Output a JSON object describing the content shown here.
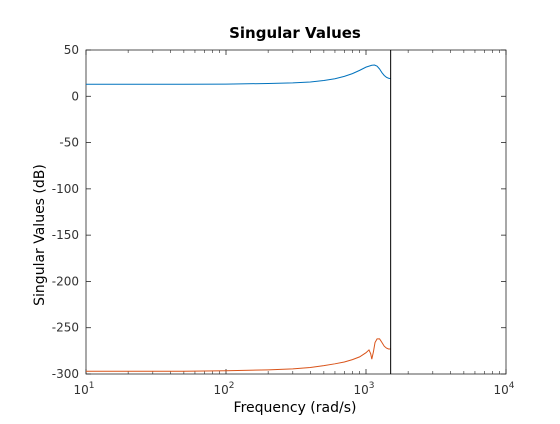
{
  "chart_data": {
    "type": "line",
    "title": "Singular Values",
    "xlabel": "Frequency (rad/s)",
    "ylabel": "Singular Values (dB)",
    "x_scale": "log",
    "xlim": [
      10,
      10000
    ],
    "ylim": [
      -300,
      50
    ],
    "grid": false,
    "legend": "none",
    "x_ticks": [
      {
        "value": 10,
        "base": "10",
        "exp": "1"
      },
      {
        "value": 100,
        "base": "10",
        "exp": "2"
      },
      {
        "value": 1000,
        "base": "10",
        "exp": "3"
      },
      {
        "value": 10000,
        "base": "10",
        "exp": "4"
      }
    ],
    "y_ticks": [
      50,
      0,
      -50,
      -100,
      -150,
      -200,
      -250,
      -300
    ],
    "vertical_line_x": 1500,
    "colors": {
      "series_1": "#0072bd",
      "series_2": "#d95319",
      "vertical_line": "#000000",
      "axes": "#262626"
    },
    "series": [
      {
        "x": [
          10,
          20,
          50,
          100,
          200,
          300,
          400,
          500,
          600,
          700,
          800,
          900,
          1000,
          1100,
          1150,
          1200,
          1250,
          1300,
          1350,
          1400,
          1450,
          1500
        ],
        "y": [
          13,
          13,
          13,
          13.2,
          13.8,
          14.5,
          15.5,
          17,
          19,
          21.5,
          24.5,
          28,
          31.5,
          33.5,
          33.8,
          32.5,
          29.5,
          25.5,
          22.5,
          20.5,
          19.5,
          19
        ]
      },
      {
        "x": [
          10,
          20,
          50,
          100,
          200,
          300,
          400,
          500,
          600,
          700,
          800,
          900,
          1000,
          1050,
          1080,
          1100,
          1130,
          1160,
          1200,
          1250,
          1300,
          1350,
          1400,
          1450,
          1500
        ],
        "y": [
          -297,
          -297,
          -297,
          -296.5,
          -295.5,
          -294.5,
          -293,
          -291,
          -289,
          -287,
          -284.5,
          -281.5,
          -277,
          -274,
          -278,
          -284,
          -276,
          -266,
          -262,
          -262,
          -266,
          -270,
          -272,
          -273,
          -273
        ]
      }
    ]
  }
}
